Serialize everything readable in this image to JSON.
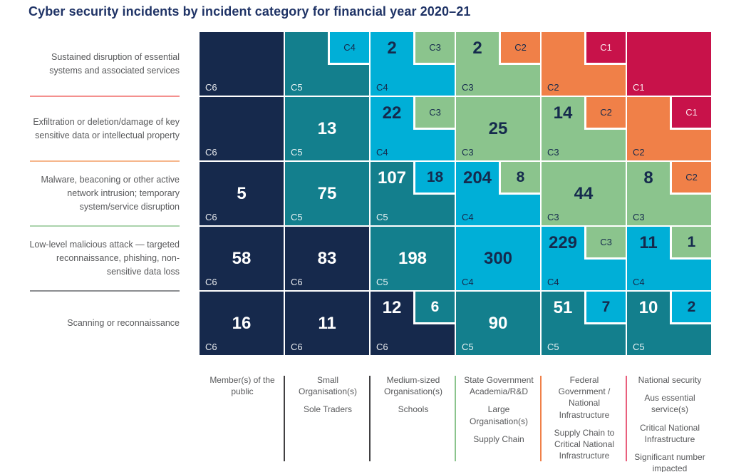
{
  "chart_data": {
    "type": "heatmap",
    "title": "Cyber security incidents by incident category for financial year 2020–21",
    "value_unit": "incident count",
    "severity_levels": [
      "C1",
      "C2",
      "C3",
      "C4",
      "C5",
      "C6"
    ],
    "severity_colors": {
      "C1": "#C8124A",
      "C2": "#F08048",
      "C3": "#8BC48D",
      "C4": "#00AFD7",
      "C5": "#137F8D",
      "C6": "#16294C"
    },
    "light_background_categories": [
      "C2",
      "C3",
      "C4"
    ],
    "dark_text_color": "#152A4D",
    "light_text_color": "#FFFFFF",
    "label_text_color": "#58595B",
    "title_color": "#1F3366",
    "rows": [
      {
        "label": "Sustained disruption of essential systems and associated services",
        "divider_color": "#F4908E",
        "cells": [
          {
            "primary": {
              "category": "C6",
              "count": null
            },
            "secondary": null
          },
          {
            "primary": {
              "category": "C5",
              "count": null
            },
            "secondary": {
              "category": "C4",
              "count": null
            }
          },
          {
            "primary": {
              "category": "C4",
              "count": 2
            },
            "secondary": {
              "category": "C3",
              "count": null
            }
          },
          {
            "primary": {
              "category": "C3",
              "count": 2
            },
            "secondary": {
              "category": "C2",
              "count": null
            }
          },
          {
            "primary": {
              "category": "C2",
              "count": null
            },
            "secondary": {
              "category": "C1",
              "count": null
            }
          },
          {
            "primary": {
              "category": "C1",
              "count": null
            },
            "secondary": null
          }
        ]
      },
      {
        "label": "Exfiltration or deletion/damage of key sensitive data or intellectual property",
        "divider_color": "#F6B68C",
        "cells": [
          {
            "primary": {
              "category": "C6",
              "count": null
            },
            "secondary": null
          },
          {
            "primary": {
              "category": "C5",
              "count": 13
            },
            "secondary": null
          },
          {
            "primary": {
              "category": "C4",
              "count": 22
            },
            "secondary": {
              "category": "C3",
              "count": null
            }
          },
          {
            "primary": {
              "category": "C3",
              "count": 25
            },
            "secondary": null
          },
          {
            "primary": {
              "category": "C3",
              "count": 14
            },
            "secondary": {
              "category": "C2",
              "count": null
            }
          },
          {
            "primary": {
              "category": "C2",
              "count": null
            },
            "secondary": {
              "category": "C1",
              "count": null
            }
          }
        ]
      },
      {
        "label": "Malware, beaconing or other active network intrusion; temporary system/service disruption",
        "divider_color": "#ABD3AC",
        "cells": [
          {
            "primary": {
              "category": "C6",
              "count": 5
            },
            "secondary": null
          },
          {
            "primary": {
              "category": "C5",
              "count": 75
            },
            "secondary": null
          },
          {
            "primary": {
              "category": "C5",
              "count": 107
            },
            "secondary": {
              "category": "C4",
              "count": 18
            }
          },
          {
            "primary": {
              "category": "C4",
              "count": 204
            },
            "secondary": {
              "category": "C3",
              "count": 8
            }
          },
          {
            "primary": {
              "category": "C3",
              "count": 44
            },
            "secondary": null
          },
          {
            "primary": {
              "category": "C3",
              "count": 8
            },
            "secondary": {
              "category": "C2",
              "count": null
            }
          }
        ]
      },
      {
        "label": "Low-level malicious attack — targeted reconnaissance, phishing, non-sensitive data loss",
        "divider_color": "#8B8D90",
        "cells": [
          {
            "primary": {
              "category": "C6",
              "count": 58
            },
            "secondary": null
          },
          {
            "primary": {
              "category": "C6",
              "count": 83
            },
            "secondary": null
          },
          {
            "primary": {
              "category": "C5",
              "count": 198
            },
            "secondary": null
          },
          {
            "primary": {
              "category": "C4",
              "count": 300
            },
            "secondary": null
          },
          {
            "primary": {
              "category": "C4",
              "count": 229
            },
            "secondary": {
              "category": "C3",
              "count": null
            }
          },
          {
            "primary": {
              "category": "C4",
              "count": 11
            },
            "secondary": {
              "category": "C3",
              "count": 1
            }
          }
        ]
      },
      {
        "label": "Scanning or reconnaissance",
        "divider_color": null,
        "cells": [
          {
            "primary": {
              "category": "C6",
              "count": 16
            },
            "secondary": null
          },
          {
            "primary": {
              "category": "C6",
              "count": 11
            },
            "secondary": null
          },
          {
            "primary": {
              "category": "C6",
              "count": 12
            },
            "secondary": {
              "category": "C5",
              "count": 6
            }
          },
          {
            "primary": {
              "category": "C5",
              "count": 90
            },
            "secondary": null
          },
          {
            "primary": {
              "category": "C5",
              "count": 51
            },
            "secondary": {
              "category": "C4",
              "count": 7
            }
          },
          {
            "primary": {
              "category": "C5",
              "count": 10
            },
            "secondary": {
              "category": "C4",
              "count": 2
            }
          }
        ]
      }
    ],
    "columns": [
      {
        "lines": [
          "Member(s) of the public"
        ]
      },
      {
        "lines": [
          "Small Organisation(s)",
          "Sole Traders"
        ]
      },
      {
        "lines": [
          "Medium-sized Organisation(s)",
          "Schools"
        ]
      },
      {
        "lines": [
          "State Government Academia/R&D",
          "Large Organisation(s)",
          "Supply Chain"
        ]
      },
      {
        "lines": [
          "Federal Government / National Infrastructure",
          "Supply Chain to Critical National Infrastructure"
        ]
      },
      {
        "lines": [
          "National security",
          "Aus essential service(s)",
          "Critical National Infrastructure",
          "Significant number impacted"
        ]
      }
    ],
    "column_divider_colors": [
      "#414042",
      "#414042",
      "#8BC48D",
      "#F08048",
      "#E95F7D"
    ]
  }
}
